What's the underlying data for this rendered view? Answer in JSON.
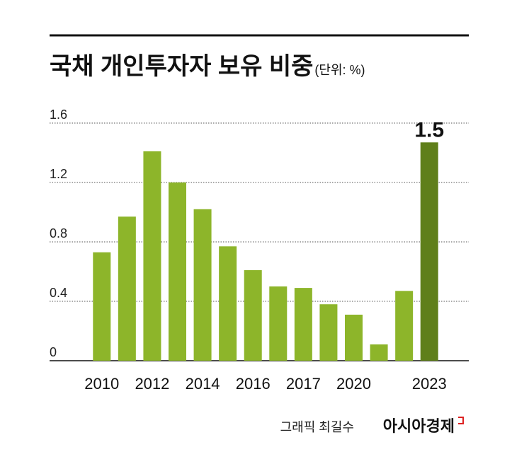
{
  "chart_data": {
    "type": "bar",
    "title": "국채 개인투자자 보유 비중",
    "subtitle": "(단위: %)",
    "credit": "그래픽 최길수",
    "source": "아시아경제",
    "categories": [
      "2010",
      null,
      "2012",
      null,
      "2014",
      null,
      "2016",
      null,
      "2017",
      null,
      "2020",
      null,
      null,
      "2023"
    ],
    "values": [
      0.73,
      0.97,
      1.41,
      1.2,
      1.02,
      0.77,
      0.61,
      0.5,
      0.49,
      0.38,
      0.31,
      0.11,
      0.47,
      1.47
    ],
    "value_labels": [
      null,
      null,
      null,
      null,
      null,
      null,
      null,
      null,
      null,
      null,
      null,
      null,
      null,
      "1.5"
    ],
    "colors": [
      "#8db52a",
      "#8db52a",
      "#8db52a",
      "#8db52a",
      "#8db52a",
      "#8db52a",
      "#8db52a",
      "#8db52a",
      "#8db52a",
      "#8db52a",
      "#8db52a",
      "#8db52a",
      "#8db52a",
      "#5f7f1a"
    ],
    "ylim": [
      0,
      1.6
    ],
    "yticks": [
      0,
      0.4,
      0.8,
      1.2,
      1.6
    ],
    "grid": true
  }
}
